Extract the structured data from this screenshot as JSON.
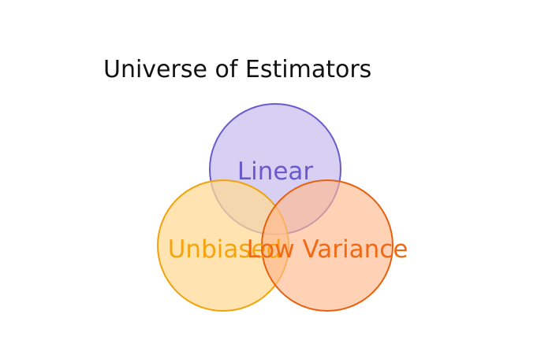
{
  "diagram": {
    "title": "Universe of Estimators",
    "sets": [
      {
        "label": "Linear",
        "fill": "#c9c0ee",
        "stroke": "#6a5acd",
        "text_color": "#6a5acd"
      },
      {
        "label": "Unbiased",
        "fill": "#ffd996",
        "stroke": "#f0a30a",
        "text_color": "#f5a40f"
      },
      {
        "label": "Low Variance",
        "fill": "#ffb98e",
        "stroke": "#e8600e",
        "text_color": "#f06a15"
      }
    ]
  }
}
